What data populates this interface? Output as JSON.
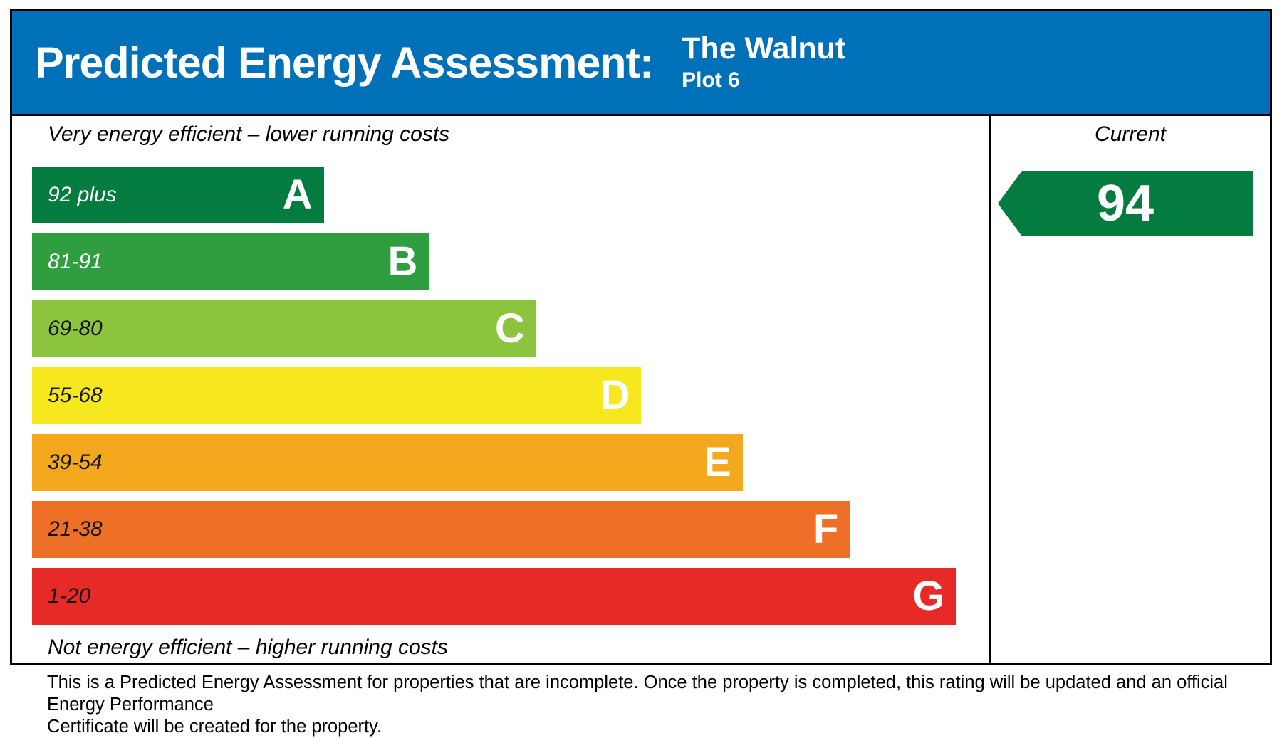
{
  "header": {
    "title": "Predicted Energy Assessment:",
    "property_name": "The Walnut",
    "plot": "Plot 6"
  },
  "chart": {
    "top_caption": "Very energy efficient – lower running costs",
    "bottom_caption": "Not energy efficient – higher running costs",
    "bands": [
      {
        "range": "92 plus",
        "letter": "A",
        "color": "#047c3f",
        "label_color": "#ffffff",
        "width_pct": 30.5
      },
      {
        "range": "81-91",
        "letter": "B",
        "color": "#2f9e3f",
        "label_color": "#ffffff",
        "width_pct": 41.5
      },
      {
        "range": "69-80",
        "letter": "C",
        "color": "#8cc43d",
        "label_color": "#141414",
        "width_pct": 52.7
      },
      {
        "range": "55-68",
        "letter": "D",
        "color": "#f6e71e",
        "label_color": "#141414",
        "width_pct": 63.7
      },
      {
        "range": "39-54",
        "letter": "E",
        "color": "#f4a81d",
        "label_color": "#141414",
        "width_pct": 74.3
      },
      {
        "range": "21-38",
        "letter": "F",
        "color": "#ed7026",
        "label_color": "#141414",
        "width_pct": 85.5
      },
      {
        "range": "1-20",
        "letter": "G",
        "color": "#e52a28",
        "label_color": "#141414",
        "width_pct": 96.6
      }
    ]
  },
  "current": {
    "label": "Current",
    "value": "94",
    "band_color": "#047c3f"
  },
  "footer": {
    "line1": "This is a Predicted Energy Assessment for properties that are incomplete. Once the property is completed, this rating will be updated and an official Energy Performance",
    "line2": "Certificate will be created for the property."
  },
  "colors": {
    "header_bg": "#0071b9",
    "border": "#000000"
  },
  "chart_data": {
    "type": "bar",
    "title": "Predicted Energy Assessment: The Walnut, Plot 6",
    "categories": [
      "A",
      "B",
      "C",
      "D",
      "E",
      "F",
      "G"
    ],
    "band_score_ranges": [
      "92 plus",
      "81-91",
      "69-80",
      "55-68",
      "39-54",
      "21-38",
      "1-20"
    ],
    "bar_relative_widths_pct": [
      30.5,
      41.5,
      52.7,
      63.7,
      74.3,
      85.5,
      96.6
    ],
    "bar_colors": [
      "#047c3f",
      "#2f9e3f",
      "#8cc43d",
      "#f6e71e",
      "#f4a81d",
      "#ed7026",
      "#e52a28"
    ],
    "current_rating": 94,
    "current_band": "A",
    "legend_position": "right",
    "grid": false,
    "annotations": [
      "Very energy efficient – lower running costs",
      "Not energy efficient – higher running costs",
      "Current"
    ]
  }
}
